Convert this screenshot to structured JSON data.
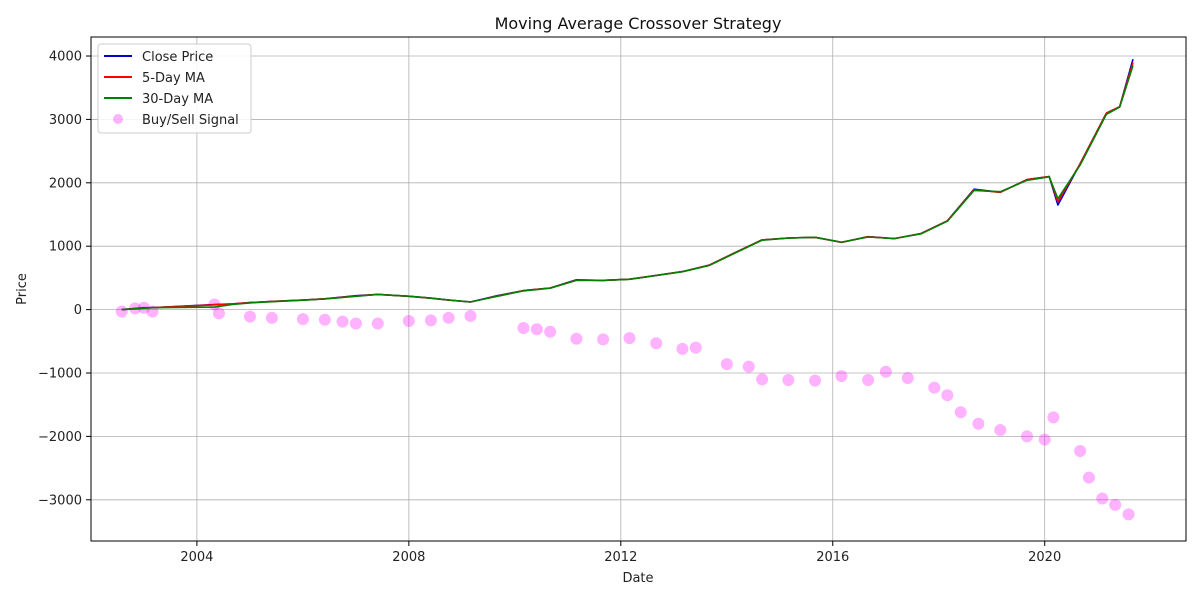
{
  "chart_data": {
    "type": "line",
    "title": "Moving Average Crossover Strategy",
    "xlabel": "Date",
    "ylabel": "Price",
    "xlim": [
      "2002-01-01",
      "2022-09-01"
    ],
    "ylim": [
      -3650,
      4300
    ],
    "x_ticks": [
      "2004",
      "2008",
      "2012",
      "2016",
      "2020"
    ],
    "y_ticks": [
      -3000,
      -2000,
      -1000,
      0,
      1000,
      2000,
      3000,
      4000
    ],
    "grid": true,
    "legend_position": "upper-left",
    "colors": {
      "close": "#0000cc",
      "ma5": "#ff0000",
      "ma30": "#008000",
      "signal": "#ff00ff"
    },
    "x": [
      "2002-08",
      "2003-01",
      "2003-03",
      "2004-05",
      "2004-09",
      "2005-01",
      "2005-06",
      "2006-01",
      "2006-06",
      "2007-01",
      "2007-06",
      "2008-01",
      "2008-06",
      "2008-10",
      "2009-03",
      "2009-09",
      "2010-03",
      "2010-09",
      "2011-03",
      "2011-09",
      "2012-03",
      "2012-09",
      "2013-03",
      "2013-09",
      "2014-03",
      "2014-09",
      "2015-03",
      "2015-09",
      "2016-03",
      "2016-09",
      "2017-03",
      "2017-09",
      "2018-03",
      "2018-09",
      "2019-03",
      "2019-09",
      "2020-02",
      "2020-04",
      "2020-09",
      "2021-03",
      "2021-06",
      "2021-09"
    ],
    "series": [
      {
        "name": "Close Price",
        "values": [
          0,
          30,
          30,
          80,
          90,
          110,
          130,
          150,
          170,
          220,
          240,
          210,
          180,
          150,
          120,
          220,
          300,
          340,
          470,
          460,
          480,
          540,
          600,
          700,
          900,
          1100,
          1130,
          1140,
          1060,
          1150,
          1120,
          1200,
          1400,
          1900,
          1850,
          2050,
          2100,
          1650,
          2300,
          3100,
          3200,
          3950
        ]
      },
      {
        "name": "5-Day MA",
        "values": [
          0,
          25,
          30,
          75,
          90,
          110,
          130,
          150,
          170,
          215,
          240,
          210,
          180,
          150,
          120,
          215,
          300,
          340,
          465,
          460,
          480,
          540,
          600,
          700,
          900,
          1100,
          1130,
          1140,
          1060,
          1150,
          1120,
          1200,
          1400,
          1890,
          1850,
          2050,
          2100,
          1700,
          2300,
          3100,
          3200,
          3900
        ]
      },
      {
        "name": "30-Day MA",
        "values": [
          0,
          20,
          30,
          40,
          80,
          105,
          125,
          148,
          168,
          210,
          238,
          212,
          182,
          152,
          122,
          210,
          295,
          338,
          460,
          462,
          478,
          538,
          598,
          695,
          895,
          1095,
          1128,
          1140,
          1065,
          1145,
          1122,
          1195,
          1395,
          1880,
          1860,
          2040,
          2095,
          1750,
          2280,
          3080,
          3195,
          3850
        ]
      }
    ],
    "signal_name": "Buy/Sell Signal",
    "signals": {
      "x": [
        "2002-08",
        "2002-11",
        "2003-01",
        "2003-03",
        "2004-05",
        "2004-06",
        "2005-01",
        "2005-06",
        "2006-01",
        "2006-06",
        "2006-10",
        "2007-01",
        "2007-06",
        "2008-01",
        "2008-06",
        "2008-10",
        "2009-03",
        "2010-03",
        "2010-06",
        "2010-09",
        "2011-03",
        "2011-09",
        "2012-03",
        "2012-09",
        "2013-03",
        "2013-06",
        "2014-01",
        "2014-06",
        "2014-09",
        "2015-03",
        "2015-09",
        "2016-03",
        "2016-09",
        "2017-01",
        "2017-06",
        "2017-12",
        "2018-03",
        "2018-06",
        "2018-10",
        "2019-03",
        "2019-09",
        "2020-01",
        "2020-03",
        "2020-09",
        "2020-11",
        "2021-02",
        "2021-05",
        "2021-08"
      ],
      "values": [
        -30,
        20,
        30,
        -30,
        80,
        -60,
        -110,
        -130,
        -150,
        -160,
        -190,
        -220,
        -220,
        -180,
        -170,
        -130,
        -100,
        -290,
        -310,
        -350,
        -460,
        -470,
        -450,
        -530,
        -620,
        -600,
        -860,
        -900,
        -1100,
        -1110,
        -1120,
        -1050,
        -1110,
        -980,
        -1080,
        -1230,
        -1350,
        -1620,
        -1800,
        -1900,
        -2000,
        -2050,
        -1700,
        -2230,
        -2650,
        -2980,
        -3080,
        -3230
      ]
    }
  }
}
